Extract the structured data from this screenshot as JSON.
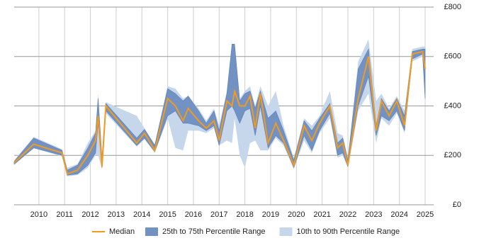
{
  "chart_data": {
    "type": "line",
    "x": [
      2009.04,
      2009.8,
      2010.9,
      2011.1,
      2011.5,
      2011.9,
      2012.2,
      2012.3,
      2012.45,
      2012.6,
      2013.8,
      2014.1,
      2014.5,
      2015.0,
      2015.3,
      2015.6,
      2015.8,
      2016.2,
      2016.5,
      2016.8,
      2017.0,
      2017.3,
      2017.5,
      2017.6,
      2017.8,
      2018.0,
      2018.2,
      2018.4,
      2018.6,
      2018.9,
      2019.2,
      2019.5,
      2019.9,
      2020.3,
      2020.6,
      2020.9,
      2021.3,
      2021.6,
      2021.8,
      2022.0,
      2022.4,
      2022.8,
      2023.1,
      2023.3,
      2023.6,
      2023.9,
      2024.2,
      2024.5,
      2024.9,
      2025.0
    ],
    "series": [
      {
        "name": "Median",
        "color": "#f29a1f",
        "values": [
          170,
          245,
          210,
          125,
          140,
          200,
          260,
          360,
          155,
          400,
          250,
          290,
          220,
          430,
          400,
          340,
          390,
          340,
          310,
          340,
          260,
          420,
          400,
          460,
          400,
          400,
          440,
          310,
          450,
          250,
          330,
          260,
          160,
          320,
          260,
          330,
          400,
          230,
          250,
          160,
          430,
          600,
          300,
          420,
          360,
          420,
          320,
          610,
          620,
          550
        ]
      }
    ],
    "bands": [
      {
        "name": "10th to 90th Percentile Range",
        "color": "#c6d7ec",
        "low": [
          160,
          230,
          195,
          115,
          120,
          150,
          200,
          200,
          145,
          370,
          235,
          265,
          210,
          350,
          230,
          220,
          300,
          300,
          290,
          310,
          240,
          260,
          250,
          350,
          200,
          150,
          250,
          260,
          220,
          220,
          270,
          240,
          145,
          260,
          210,
          290,
          350,
          190,
          200,
          150,
          380,
          450,
          250,
          350,
          320,
          370,
          290,
          580,
          600,
          410
        ],
        "high": [
          180,
          275,
          225,
          150,
          165,
          250,
          300,
          450,
          200,
          415,
          360,
          310,
          245,
          480,
          470,
          430,
          440,
          390,
          340,
          390,
          320,
          460,
          650,
          650,
          430,
          460,
          480,
          400,
          480,
          400,
          460,
          320,
          190,
          350,
          320,
          360,
          460,
          290,
          280,
          190,
          580,
          670,
          420,
          450,
          390,
          440,
          380,
          630,
          640,
          640
        ]
      },
      {
        "name": "25th to 75th Percentile Range",
        "color": "#7192c2",
        "low": [
          165,
          230,
          200,
          120,
          125,
          160,
          210,
          330,
          150,
          380,
          240,
          270,
          215,
          360,
          380,
          330,
          330,
          320,
          300,
          320,
          240,
          380,
          400,
          380,
          330,
          380,
          390,
          280,
          400,
          230,
          280,
          250,
          150,
          280,
          220,
          300,
          370,
          200,
          210,
          155,
          400,
          520,
          280,
          360,
          340,
          380,
          300,
          590,
          610,
          430
        ],
        "high": [
          175,
          270,
          220,
          140,
          160,
          230,
          290,
          430,
          190,
          410,
          270,
          305,
          240,
          470,
          450,
          420,
          440,
          380,
          330,
          380,
          300,
          450,
          650,
          650,
          420,
          450,
          460,
          390,
          460,
          350,
          380,
          300,
          180,
          340,
          300,
          350,
          410,
          250,
          270,
          180,
          550,
          630,
          320,
          430,
          380,
          430,
          360,
          620,
          630,
          630
        ]
      }
    ],
    "xlim": [
      2009.04,
      2025.33
    ],
    "xticks": [
      2010,
      2011,
      2012,
      2013,
      2014,
      2015,
      2016,
      2017,
      2018,
      2019,
      2020,
      2021,
      2022,
      2023,
      2024,
      2025
    ],
    "ylim": [
      0,
      800
    ],
    "yticks": [
      {
        "value": 0,
        "label": "£0"
      },
      {
        "value": 200,
        "label": "£200"
      },
      {
        "value": 400,
        "label": "£400"
      },
      {
        "value": 600,
        "label": "£600"
      },
      {
        "value": 800,
        "label": "£800"
      }
    ],
    "grid": true
  }
}
